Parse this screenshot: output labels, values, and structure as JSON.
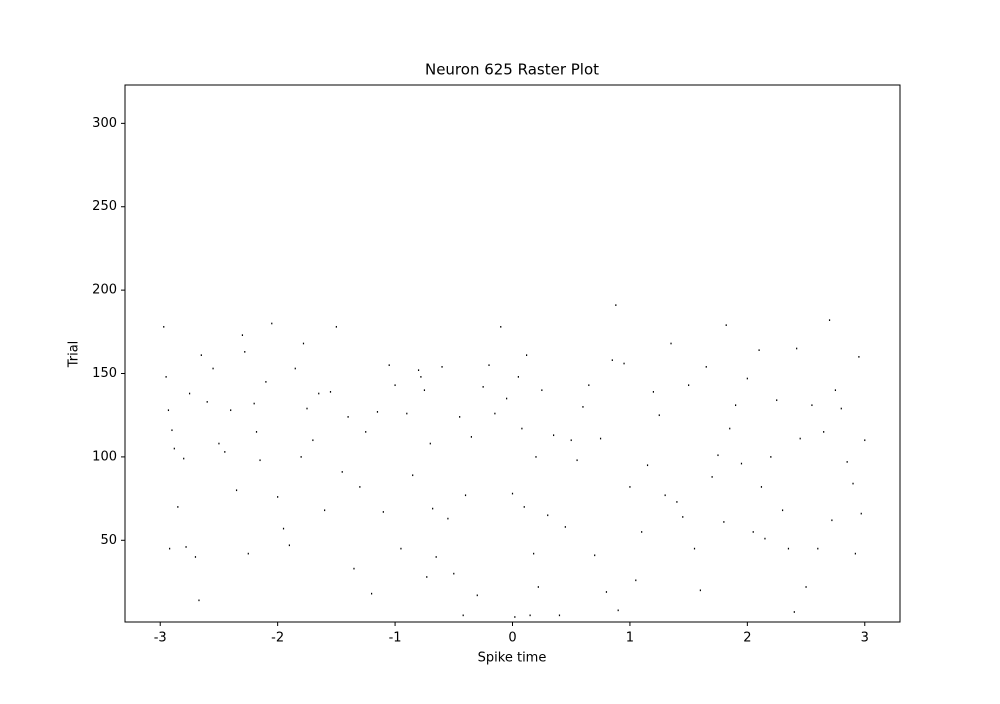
{
  "chart_data": {
    "type": "raster",
    "title": "Neuron 625 Raster Plot",
    "x_label": "Spike time",
    "y_label": "Trial",
    "color": "#000000",
    "xlim": [
      -3.3,
      3.3
    ],
    "ylim": [
      1,
      323
    ],
    "xticks": [
      -3,
      -2,
      -1,
      0,
      1,
      2,
      3
    ],
    "yticks": [
      50,
      100,
      150,
      200,
      250,
      300
    ],
    "x": [
      -2.97,
      -2.95,
      -2.93,
      -2.9,
      -2.88,
      -2.92,
      -2.85,
      -2.8,
      -2.75,
      -2.78,
      -2.7,
      -2.67,
      -2.65,
      -2.6,
      -2.55,
      -2.5,
      -2.45,
      -2.4,
      -2.35,
      -2.3,
      -2.28,
      -2.25,
      -2.2,
      -2.18,
      -2.15,
      -2.1,
      -2.05,
      -2.0,
      -1.95,
      -1.9,
      -1.85,
      -1.8,
      -1.78,
      -1.75,
      -1.7,
      -1.65,
      -1.6,
      -1.55,
      -1.5,
      -1.45,
      -1.4,
      -1.35,
      -1.3,
      -1.25,
      -1.2,
      -1.15,
      -1.1,
      -1.05,
      -1.0,
      -0.95,
      -0.9,
      -0.85,
      -0.8,
      -0.78,
      -0.75,
      -0.73,
      -0.7,
      -0.68,
      -0.65,
      -0.6,
      -0.55,
      -0.5,
      -0.45,
      -0.42,
      -0.4,
      -0.35,
      -0.3,
      -0.25,
      -0.2,
      -0.15,
      -0.1,
      -0.05,
      0.0,
      0.02,
      0.05,
      0.08,
      0.1,
      0.12,
      0.15,
      0.18,
      0.2,
      0.22,
      0.25,
      0.3,
      0.35,
      0.4,
      0.45,
      0.5,
      0.55,
      0.6,
      0.65,
      0.7,
      0.75,
      0.8,
      0.85,
      0.88,
      0.9,
      0.95,
      1.0,
      1.05,
      1.1,
      1.15,
      1.2,
      1.25,
      1.3,
      1.35,
      1.4,
      1.45,
      1.5,
      1.55,
      1.6,
      1.65,
      1.7,
      1.75,
      1.8,
      1.82,
      1.85,
      1.9,
      1.95,
      2.0,
      2.05,
      2.1,
      2.12,
      2.15,
      2.2,
      2.25,
      2.3,
      2.35,
      2.4,
      2.42,
      2.45,
      2.5,
      2.55,
      2.6,
      2.65,
      2.7,
      2.72,
      2.75,
      2.8,
      2.85,
      2.9,
      2.92,
      2.95,
      2.97,
      3.0
    ],
    "y": [
      178,
      148,
      128,
      116,
      105,
      45,
      70,
      99,
      138,
      46,
      40,
      14,
      161,
      133,
      153,
      108,
      103,
      128,
      80,
      173,
      163,
      42,
      132,
      115,
      98,
      145,
      180,
      76,
      57,
      47,
      153,
      100,
      168,
      129,
      110,
      138,
      68,
      139,
      178,
      91,
      124,
      33,
      82,
      115,
      18,
      127,
      67,
      155,
      143,
      45,
      126,
      89,
      152,
      148,
      140,
      28,
      108,
      69,
      40,
      154,
      63,
      30,
      124,
      5,
      77,
      112,
      17,
      142,
      155,
      126,
      178,
      135,
      78,
      4,
      148,
      117,
      70,
      161,
      5,
      42,
      100,
      22,
      140,
      65,
      113,
      5,
      58,
      110,
      98,
      130,
      143,
      41,
      111,
      19,
      158,
      191,
      8,
      156,
      82,
      26,
      55,
      95,
      139,
      125,
      77,
      168,
      73,
      64,
      143,
      45,
      20,
      154,
      88,
      101,
      61,
      179,
      117,
      131,
      96,
      147,
      55,
      164,
      82,
      51,
      100,
      134,
      68,
      45,
      7,
      165,
      111,
      22,
      131,
      45,
      115,
      182,
      62,
      140,
      129,
      97,
      84,
      42,
      160,
      66,
      110
    ]
  }
}
